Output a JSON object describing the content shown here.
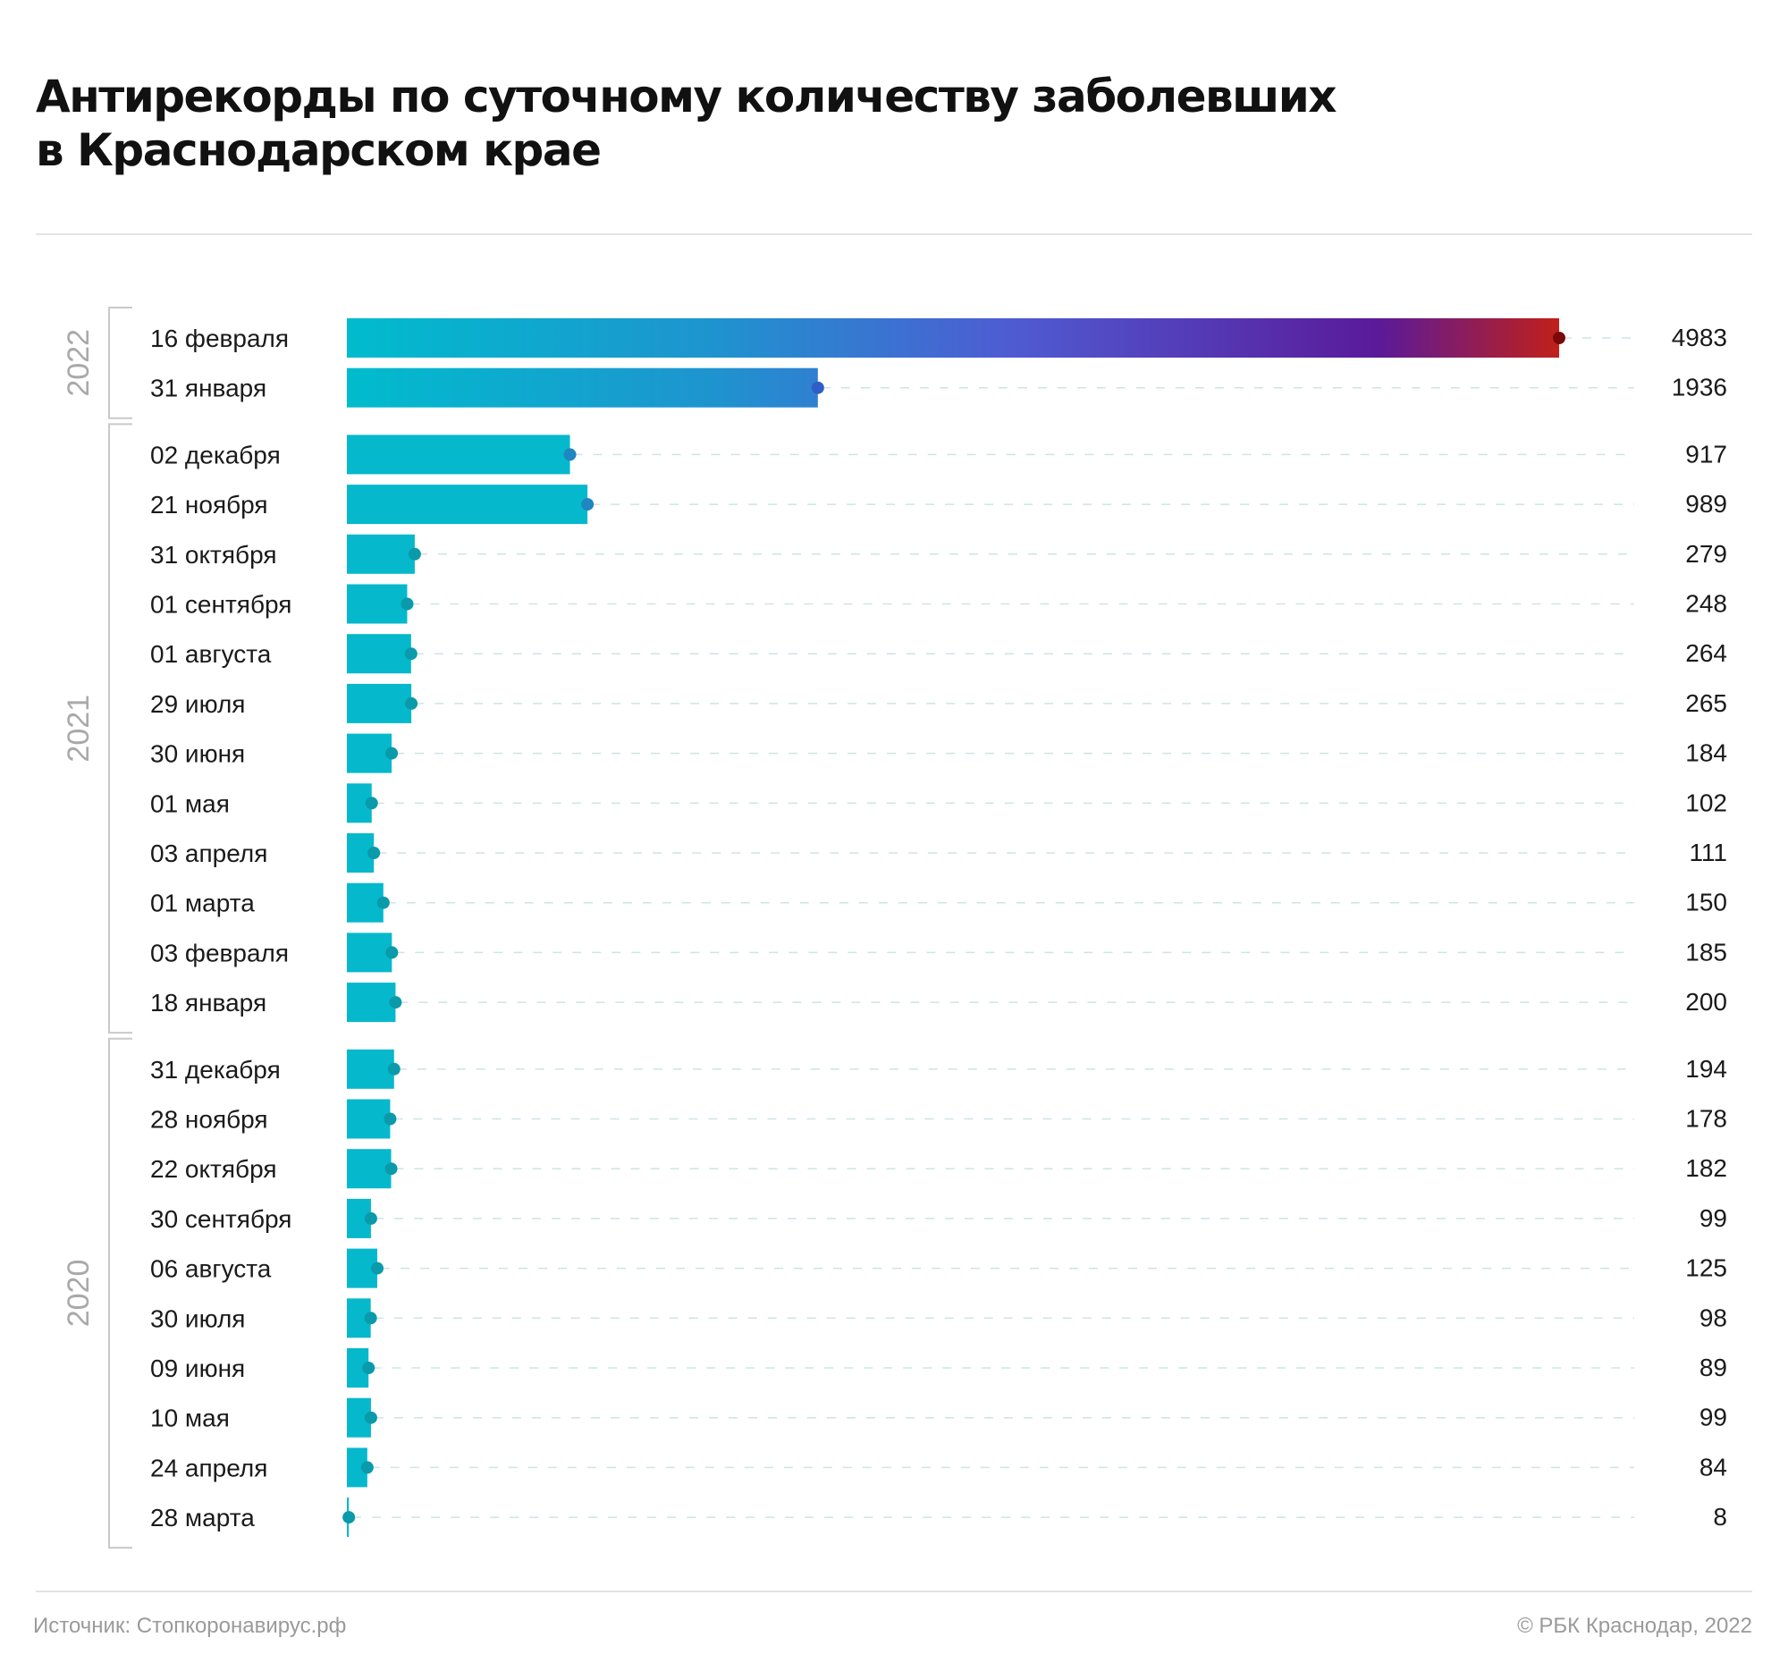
{
  "title": {
    "line1": "Антирекорды по суточному количеству заболевших",
    "line2": "в Краснодарском крае"
  },
  "footer": {
    "source": "Источник: Стопкоронавирус.рф",
    "copyright": "© РБК Краснодар, 2022"
  },
  "colors": {
    "bar": "#06b8cc",
    "dot": "#0a9aaa",
    "grid": "#cfe3e6",
    "gradient": [
      "#00bccd",
      "#1e94cf",
      "#4f5bd2",
      "#5a1a9a",
      "#c0201a"
    ],
    "year_label": "#a9a9a9",
    "bracket": "#c9c9c9"
  },
  "chart_data": {
    "type": "bar",
    "orientation": "horizontal",
    "title": "Антирекорды по суточному количеству заболевших в Краснодарском крае",
    "xlim": [
      0,
      4983
    ],
    "grid": false,
    "groups": [
      {
        "year": "2022",
        "rows": [
          {
            "label": "16 февраля",
            "value": 4983
          },
          {
            "label": "31 января",
            "value": 1936
          }
        ]
      },
      {
        "year": "2021",
        "rows": [
          {
            "label": "02 декабря",
            "value": 917
          },
          {
            "label": "21 ноября",
            "value": 989
          },
          {
            "label": "31 октября",
            "value": 279
          },
          {
            "label": "01 сентября",
            "value": 248
          },
          {
            "label": "01 августа",
            "value": 264
          },
          {
            "label": "29 июля",
            "value": 265
          },
          {
            "label": "30 июня",
            "value": 184
          },
          {
            "label": "01 мая",
            "value": 102
          },
          {
            "label": "03 апреля",
            "value": 111
          },
          {
            "label": "01 марта",
            "value": 150
          },
          {
            "label": "03 февраля",
            "value": 185
          },
          {
            "label": "18 января",
            "value": 200
          }
        ]
      },
      {
        "year": "2020",
        "rows": [
          {
            "label": "31 декабря",
            "value": 194
          },
          {
            "label": "28 ноября",
            "value": 178
          },
          {
            "label": "22 октября",
            "value": 182
          },
          {
            "label": "30 сентября",
            "value": 99
          },
          {
            "label": "06 августа",
            "value": 125
          },
          {
            "label": "30 июля",
            "value": 98
          },
          {
            "label": "09 июня",
            "value": 89
          },
          {
            "label": "10 мая",
            "value": 99
          },
          {
            "label": "24 апреля",
            "value": 84
          },
          {
            "label": "28 марта",
            "value": 8
          }
        ]
      }
    ]
  }
}
